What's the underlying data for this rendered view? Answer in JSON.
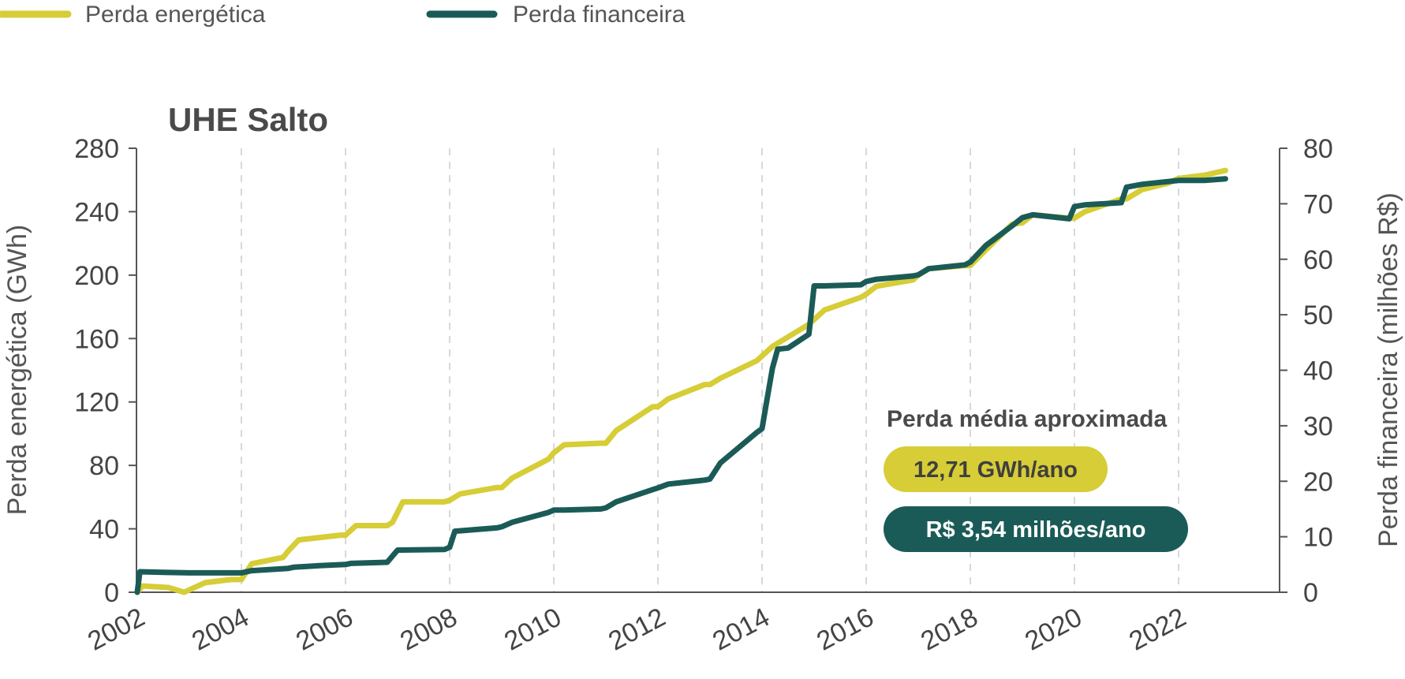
{
  "colors": {
    "energetica": "#d6cd37",
    "financeira": "#1b5b57",
    "axis": "#555555",
    "grid": "#cccccc"
  },
  "legend": [
    {
      "label": "Perda energética",
      "color": "#d6cd37"
    },
    {
      "label": "Perda financeira",
      "color": "#1b5b57"
    }
  ],
  "annotation": {
    "title": "Perda média aproximada",
    "energy_badge": "12,71 GWh/ano",
    "finance_badge": "R$ 3,54 milhões/ano"
  },
  "chart_data": {
    "type": "line",
    "title": "UHE Salto",
    "xlabel": "",
    "ylabel": "Perda energética (GWh)",
    "ylabel_right": "Perda financeira (milhões R$)",
    "xlim": [
      2002,
      2024
    ],
    "ylim": [
      0,
      280
    ],
    "ylim_right": [
      0,
      80
    ],
    "x_ticks": [
      "2002",
      "2004",
      "2006",
      "2008",
      "2010",
      "2012",
      "2014",
      "2016",
      "2018",
      "2020",
      "2022"
    ],
    "y_ticks": [
      "0",
      "40",
      "80",
      "120",
      "160",
      "200",
      "240",
      "280"
    ],
    "y_ticks_right": [
      "0",
      "10",
      "20",
      "30",
      "40",
      "50",
      "60",
      "70",
      "80"
    ],
    "grid": "vertical dashed",
    "legend_position": "top-left",
    "series": [
      {
        "name": "Perda energética",
        "axis": "left",
        "x": [
          2002.0,
          2002.1,
          2002.6,
          2002.9,
          2003.1,
          2003.3,
          2003.8,
          2004.0,
          2004.2,
          2004.8,
          2004.9,
          2005.1,
          2005.9,
          2006.0,
          2006.2,
          2006.8,
          2006.9,
          2007.1,
          2007.9,
          2008.0,
          2008.2,
          2008.9,
          2009.0,
          2009.2,
          2009.9,
          2010.0,
          2010.2,
          2010.9,
          2011.0,
          2011.2,
          2011.9,
          2012.0,
          2012.2,
          2012.9,
          2013.0,
          2013.2,
          2013.9,
          2014.0,
          2014.2,
          2014.9,
          2015.0,
          2015.2,
          2015.9,
          2016.0,
          2016.2,
          2016.9,
          2017.0,
          2017.2,
          2017.9,
          2018.0,
          2018.3,
          2018.8,
          2019.0,
          2019.2,
          2019.9,
          2020.0,
          2020.2,
          2020.9,
          2021.0,
          2021.3,
          2021.8,
          2022.0,
          2022.5,
          2022.9
        ],
        "values": [
          0,
          4,
          3,
          0,
          3,
          6,
          8,
          8,
          18,
          22,
          26,
          33,
          36,
          36,
          42,
          42,
          44,
          57,
          57,
          58,
          62,
          66,
          66,
          72,
          84,
          88,
          93,
          94,
          94,
          102,
          117,
          117,
          122,
          131,
          131,
          135,
          146,
          149,
          155,
          169,
          172,
          178,
          186,
          188,
          193,
          197,
          200,
          204,
          206,
          206,
          216,
          232,
          233,
          238,
          236,
          236,
          240,
          248,
          248,
          254,
          258,
          261,
          263,
          266
        ]
      },
      {
        "name": "Perda financeira",
        "axis": "right",
        "x": [
          2002.0,
          2002.05,
          2002.5,
          2003.0,
          2003.5,
          2004.0,
          2004.2,
          2004.9,
          2005.0,
          2005.5,
          2006.0,
          2006.1,
          2006.8,
          2007.0,
          2007.9,
          2008.0,
          2008.1,
          2008.9,
          2009.0,
          2009.2,
          2009.9,
          2010.0,
          2010.2,
          2010.9,
          2011.0,
          2011.2,
          2011.9,
          2012.0,
          2012.2,
          2012.9,
          2013.0,
          2013.2,
          2013.9,
          2014.0,
          2014.1,
          2014.2,
          2014.3,
          2014.5,
          2014.9,
          2015.0,
          2015.2,
          2015.9,
          2016.0,
          2016.2,
          2016.9,
          2017.0,
          2017.2,
          2017.9,
          2018.0,
          2018.3,
          2018.8,
          2019.0,
          2019.2,
          2019.9,
          2020.0,
          2020.2,
          2020.9,
          2021.0,
          2021.3,
          2021.8,
          2022.0,
          2022.5,
          2022.9
        ],
        "values": [
          0,
          3.7,
          3.6,
          3.5,
          3.5,
          3.5,
          3.9,
          4.3,
          4.5,
          4.8,
          5.0,
          5.2,
          5.4,
          7.6,
          7.7,
          8.1,
          11.0,
          11.6,
          11.8,
          12.6,
          14.4,
          14.8,
          14.8,
          15.0,
          15.2,
          16.3,
          18.5,
          18.8,
          19.5,
          20.2,
          20.4,
          23.3,
          28.8,
          29.5,
          35.0,
          40.4,
          43.8,
          44.0,
          46.5,
          55.2,
          55.2,
          55.4,
          56.0,
          56.4,
          57.0,
          57.2,
          58.3,
          59.0,
          59.5,
          62.5,
          66.0,
          67.5,
          68.0,
          67.3,
          69.5,
          69.8,
          70.2,
          73.0,
          73.5,
          74.0,
          74.2,
          74.2,
          74.5
        ]
      }
    ]
  }
}
